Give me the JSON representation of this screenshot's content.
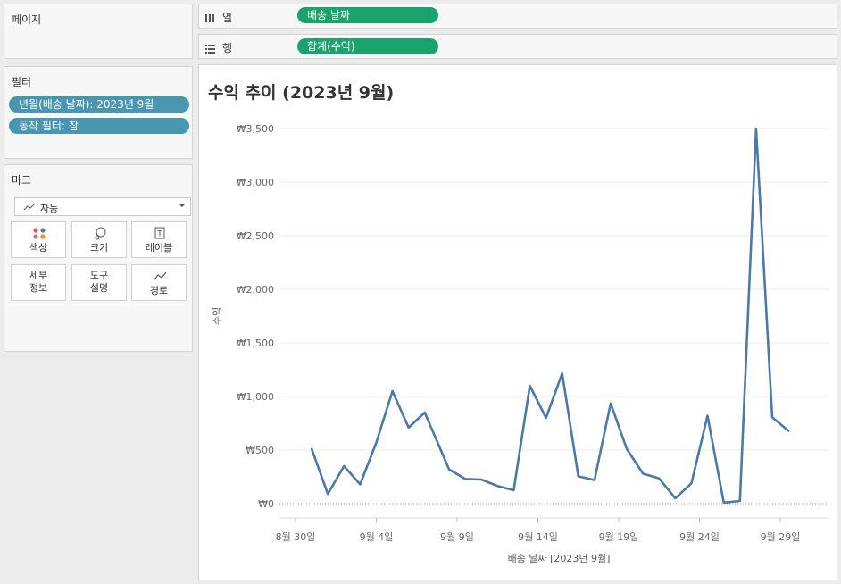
{
  "pages_panel": {
    "title": "페이지"
  },
  "filters_panel": {
    "title": "필터",
    "filters": [
      "년월(배송 날짜): 2023년 9월",
      "동작 필터: 참"
    ]
  },
  "marks_panel": {
    "title": "마크",
    "mark_type": "자동",
    "buttons": [
      {
        "label": "색상",
        "icon": "color-icon"
      },
      {
        "label": "크기",
        "icon": "size-icon"
      },
      {
        "label": "레이블",
        "icon": "label-icon"
      },
      {
        "label": "세부\n정보",
        "line1": "세부",
        "line2": "정보",
        "icon": "detail-icon"
      },
      {
        "label": "도구\n설명",
        "line1": "도구",
        "line2": "설명",
        "icon": "tooltip-icon"
      },
      {
        "label": "경로",
        "icon": "path-icon"
      }
    ]
  },
  "columns_shelf": {
    "label": "열",
    "field": "배송 날짜"
  },
  "rows_shelf": {
    "label": "행",
    "field": "합계(수익)"
  },
  "colors": {
    "line": "#4e79a7",
    "field_pill": "#1ba36d",
    "filter_pill": "#4a95b0"
  },
  "chart_data": {
    "type": "line",
    "title": "수익 추이 (2023년 9월)",
    "xlabel": "배송 날짜 [2023년 9월]",
    "ylabel": "수익",
    "x_ticks": [
      "8월 30일",
      "9월 4일",
      "9월 9일",
      "9월 14일",
      "9월 19일",
      "9월 24일",
      "9월 29일"
    ],
    "x_tick_days": [
      0,
      5,
      10,
      15,
      20,
      25,
      30
    ],
    "y_ticks": [
      "₩0",
      "₩500",
      "₩1,000",
      "₩1,500",
      "₩2,000",
      "₩2,500",
      "₩3,000",
      "₩3,500"
    ],
    "ylim": [
      0,
      3500
    ],
    "series": [
      {
        "values": [
          {
            "x": "8월 31일",
            "y": 510
          },
          {
            "x": "9월 1일",
            "y": 90
          },
          {
            "x": "9월 2일",
            "y": 350
          },
          {
            "x": "9월 3일",
            "y": 180
          },
          {
            "x": "9월 4일",
            "y": 570
          },
          {
            "x": "9월 5일",
            "y": 1050
          },
          {
            "x": "9월 6일",
            "y": 710
          },
          {
            "x": "9월 7일",
            "y": 850
          },
          {
            "x": "9월 8일",
            "y": 320
          },
          {
            "x": "9월 9일",
            "y": 230
          },
          {
            "x": "9월 10일",
            "y": 225
          },
          {
            "x": "9월 11일",
            "y": 165
          },
          {
            "x": "9월 12일",
            "y": 125
          },
          {
            "x": "9월 13일",
            "y": 1100
          },
          {
            "x": "9월 14일",
            "y": 800
          },
          {
            "x": "9월 15일",
            "y": 1215
          },
          {
            "x": "9월 16일",
            "y": 255
          },
          {
            "x": "9월 17일",
            "y": 220
          },
          {
            "x": "9월 18일",
            "y": 935
          },
          {
            "x": "9월 19일",
            "y": 510
          },
          {
            "x": "9월 20일",
            "y": 280
          },
          {
            "x": "9월 21일",
            "y": 235
          },
          {
            "x": "9월 22일",
            "y": 50
          },
          {
            "x": "9월 23일",
            "y": 190
          },
          {
            "x": "9월 24일",
            "y": 820
          },
          {
            "x": "9월 25일",
            "y": 10
          },
          {
            "x": "9월 26일",
            "y": 25
          },
          {
            "x": "9월 27일",
            "y": 3500
          },
          {
            "x": "9월 28일",
            "y": 805
          },
          {
            "x": "9월 29일",
            "y": 680
          }
        ]
      }
    ],
    "x_day_offsets": [
      1,
      2,
      3,
      4,
      5,
      6,
      7,
      8,
      9.5,
      10.5,
      11.5,
      12.5,
      13.5,
      14.5,
      15.5,
      16.5,
      17.5,
      18.5,
      19.5,
      20.5,
      21.5,
      22.5,
      23.5,
      24.5,
      25.5,
      26.5,
      27.5,
      28.5,
      29.5,
      30.5
    ],
    "grid": true,
    "zero_line": "dotted"
  }
}
